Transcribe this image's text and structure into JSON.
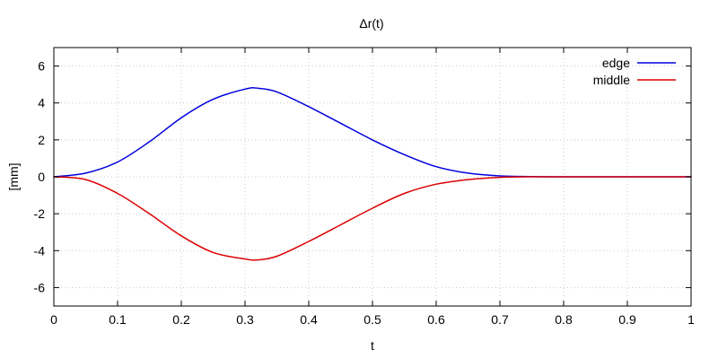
{
  "chart_data": {
    "type": "line",
    "title": "Δr(t)",
    "xlabel": "t",
    "ylabel": "[mm]",
    "xlim": [
      0,
      1
    ],
    "ylim": [
      -7,
      7
    ],
    "x_ticks": [
      0,
      0.1,
      0.2,
      0.3,
      0.4,
      0.5,
      0.6,
      0.7,
      0.8,
      0.9,
      1
    ],
    "x_tick_labels": [
      "0",
      "0.1",
      "0.2",
      "0.3",
      "0.4",
      "0.5",
      "0.6",
      "0.7",
      "0.8",
      "0.9",
      "1"
    ],
    "y_ticks": [
      -6,
      -4,
      -2,
      0,
      2,
      4,
      6
    ],
    "y_tick_labels": [
      "-6",
      "-4",
      "-2",
      "0",
      "2",
      "4",
      "6"
    ],
    "grid": true,
    "legend_position": "top-right",
    "x": [
      0,
      0.05,
      0.1,
      0.15,
      0.2,
      0.25,
      0.3,
      0.32,
      0.35,
      0.4,
      0.45,
      0.5,
      0.55,
      0.6,
      0.65,
      0.7,
      0.75,
      0.8,
      0.85,
      0.9,
      0.95,
      1
    ],
    "series": [
      {
        "name": "edge",
        "color": "#0000dd",
        "values": [
          0,
          0.2,
          0.8,
          1.9,
          3.2,
          4.2,
          4.75,
          4.8,
          4.6,
          3.8,
          2.9,
          2.0,
          1.2,
          0.55,
          0.2,
          0.05,
          0.01,
          0,
          0,
          0,
          0,
          0
        ]
      },
      {
        "name": "middle",
        "color": "#dd0000",
        "values": [
          0,
          -0.15,
          -0.9,
          -2.0,
          -3.2,
          -4.1,
          -4.45,
          -4.5,
          -4.3,
          -3.5,
          -2.6,
          -1.7,
          -0.9,
          -0.4,
          -0.15,
          -0.03,
          0,
          0,
          0,
          0,
          0,
          0
        ]
      }
    ]
  }
}
